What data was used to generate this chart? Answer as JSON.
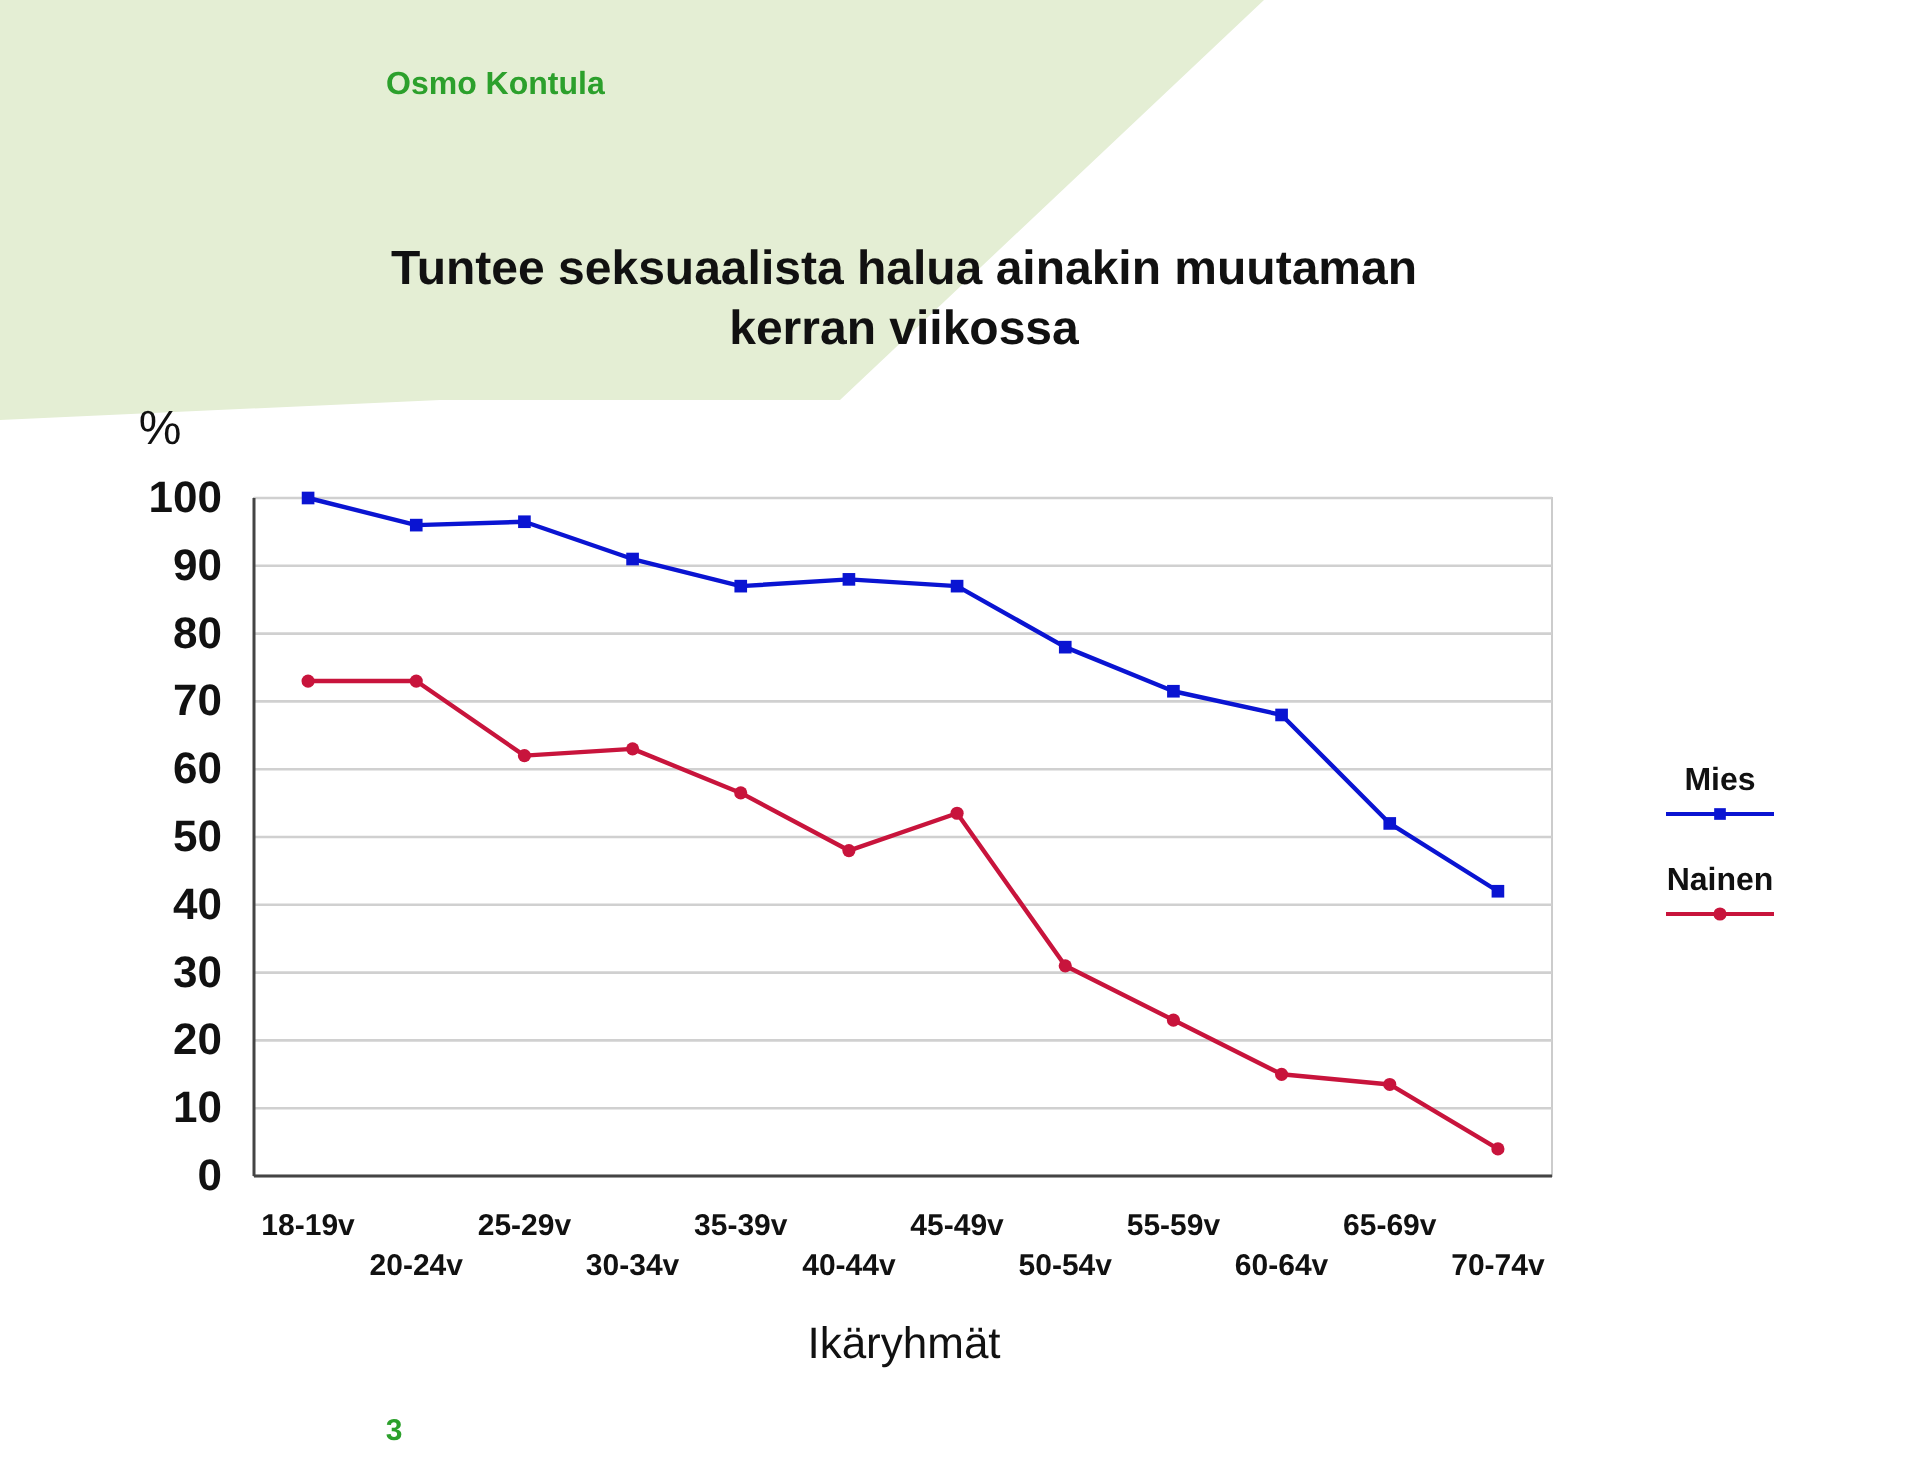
{
  "chart_data": {
    "type": "line",
    "title": "Tuntee seksuaalista halua ainakin muutaman kerran viikossa",
    "ylabel": "%",
    "xlabel": "Ikäryhmät",
    "annotations": [
      "Osmo Kontula",
      "3"
    ],
    "categories": [
      "18-19v",
      "20-24v",
      "25-29v",
      "30-34v",
      "35-39v",
      "40-44v",
      "45-49v",
      "50-54v",
      "55-59v",
      "60-64v",
      "65-69v",
      "70-74v"
    ],
    "series": [
      {
        "name": "Mies",
        "color": "#0a14d2",
        "marker": "square",
        "values": [
          100,
          96,
          96.5,
          91,
          87,
          88,
          87,
          78,
          71.5,
          68,
          52,
          42
        ]
      },
      {
        "name": "Nainen",
        "color": "#c8143c",
        "marker": "circle",
        "values": [
          73,
          73,
          62,
          63,
          56.5,
          48,
          53.5,
          31,
          23,
          15,
          13.5,
          4
        ]
      }
    ],
    "ylim": [
      0,
      100
    ],
    "yticks": [
      0,
      10,
      20,
      30,
      40,
      50,
      60,
      70,
      80,
      90,
      100
    ],
    "grid": "y",
    "legend": "right",
    "line_style": "solid"
  }
}
